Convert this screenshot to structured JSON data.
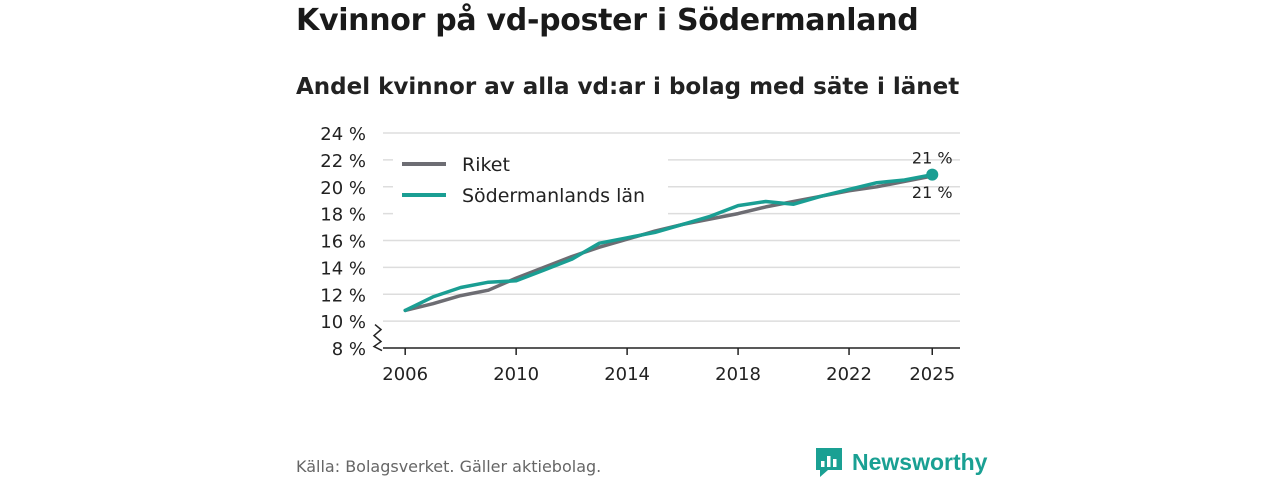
{
  "title": "Kvinnor på vd-poster i Södermanland",
  "subtitle": "Andel kvinnor av alla vd:ar i bolag med säte i länet",
  "source": "Källa: Bolagsverket. Gäller aktiebolag.",
  "brand": "Newsworthy",
  "colors": {
    "riket": "#6d6d73",
    "sodermanland": "#1a9e93",
    "grid": "#dddddd",
    "axis": "#222222"
  },
  "chart_data": {
    "type": "line",
    "title": "Kvinnor på vd-poster i Södermanland",
    "subtitle": "Andel kvinnor av alla vd:ar i bolag med säte i länet",
    "xlabel": "",
    "ylabel": "",
    "xlim": [
      2005.2,
      2026
    ],
    "ylim": [
      8,
      24
    ],
    "x_ticks": [
      2006,
      2010,
      2014,
      2018,
      2022,
      2025
    ],
    "y_ticks": [
      8,
      10,
      12,
      14,
      16,
      18,
      20,
      22,
      24
    ],
    "y_tick_labels": [
      "8 %",
      "10 %",
      "12 %",
      "14 %",
      "16 %",
      "18 %",
      "20 %",
      "22 %",
      "24 %"
    ],
    "axis_break": true,
    "grid": true,
    "legend_position": "top-left",
    "x": [
      2006,
      2007,
      2008,
      2009,
      2010,
      2011,
      2012,
      2013,
      2014,
      2015,
      2016,
      2017,
      2018,
      2019,
      2020,
      2021,
      2022,
      2023,
      2024,
      2025
    ],
    "series": [
      {
        "name": "Riket",
        "color": "#6d6d73",
        "values": [
          10.8,
          11.3,
          11.9,
          12.3,
          13.2,
          14.0,
          14.8,
          15.5,
          16.1,
          16.7,
          17.2,
          17.6,
          18.0,
          18.5,
          18.9,
          19.3,
          19.7,
          20.0,
          20.4,
          20.8
        ],
        "end_label": "21 %"
      },
      {
        "name": "Södermanlands län",
        "color": "#1a9e93",
        "values": [
          10.8,
          11.8,
          12.5,
          12.9,
          13.0,
          13.8,
          14.6,
          15.8,
          16.2,
          16.6,
          17.2,
          17.8,
          18.6,
          18.9,
          18.7,
          19.3,
          19.8,
          20.3,
          20.5,
          20.9
        ],
        "end_label": "21 %"
      }
    ]
  }
}
